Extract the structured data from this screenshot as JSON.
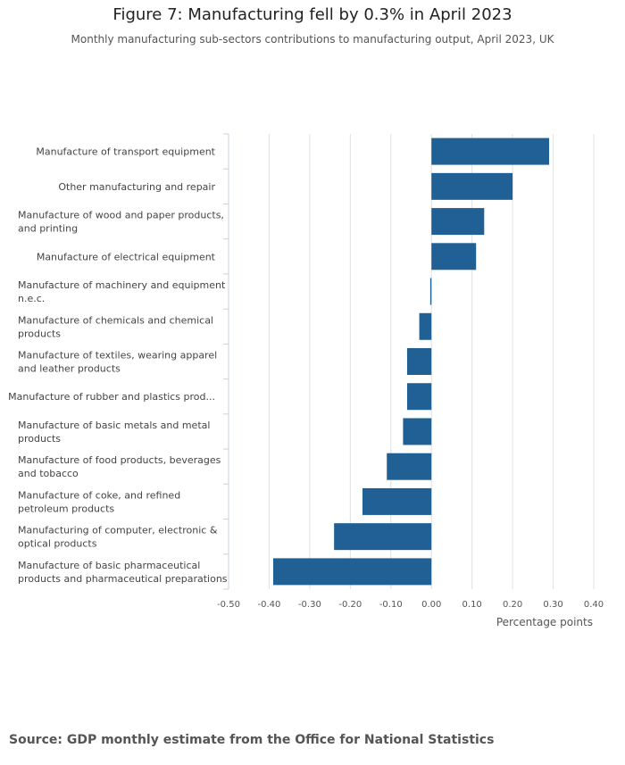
{
  "title": "Figure 7: Manufacturing fell by 0.3% in April 2023",
  "subtitle": "Monthly manufacturing sub-sectors contributions to manufacturing output, April 2023, UK",
  "source": "Source: GDP monthly estimate from the Office for National Statistics",
  "colors": {
    "bar": "#206095",
    "grid": "#e0e0e0",
    "axis": "#c8d2e0"
  },
  "chart_data": {
    "type": "bar",
    "orientation": "horizontal",
    "xlabel": "Percentage points",
    "xlim": [
      -0.5,
      0.4
    ],
    "xticks": [
      -0.5,
      -0.4,
      -0.3,
      -0.2,
      -0.1,
      0.0,
      0.1,
      0.2,
      0.3,
      0.4
    ],
    "xtick_labels": [
      "-0.50",
      "-0.40",
      "-0.30",
      "-0.20",
      "-0.10",
      "0.00",
      "0.10",
      "0.20",
      "0.30",
      "0.40"
    ],
    "grid": true,
    "categories": [
      [
        "Manufacture of transport equipment"
      ],
      [
        "Other manufacturing and repair"
      ],
      [
        "Manufacture of wood and paper products,",
        "and printing"
      ],
      [
        "Manufacture of electrical equipment"
      ],
      [
        "Manufacture of machinery and equipment",
        "n.e.c."
      ],
      [
        "Manufacture of chemicals and chemical",
        "products"
      ],
      [
        "Manufacture of textiles, wearing apparel",
        "and leather products"
      ],
      [
        "Manufacture of rubber and plastics prod..."
      ],
      [
        "Manufacture of basic metals and metal",
        "products"
      ],
      [
        "Manufacture of food products, beverages",
        "and tobacco"
      ],
      [
        "Manufacture of coke, and refined",
        "petroleum products"
      ],
      [
        "Manufacturing of computer, electronic &",
        "optical products"
      ],
      [
        "Manufacture of basic pharmaceutical",
        "products and pharmaceutical preparations"
      ]
    ],
    "values": [
      0.29,
      0.2,
      0.13,
      0.11,
      -0.003,
      -0.03,
      -0.06,
      -0.06,
      -0.07,
      -0.11,
      -0.17,
      -0.24,
      -0.39
    ]
  }
}
